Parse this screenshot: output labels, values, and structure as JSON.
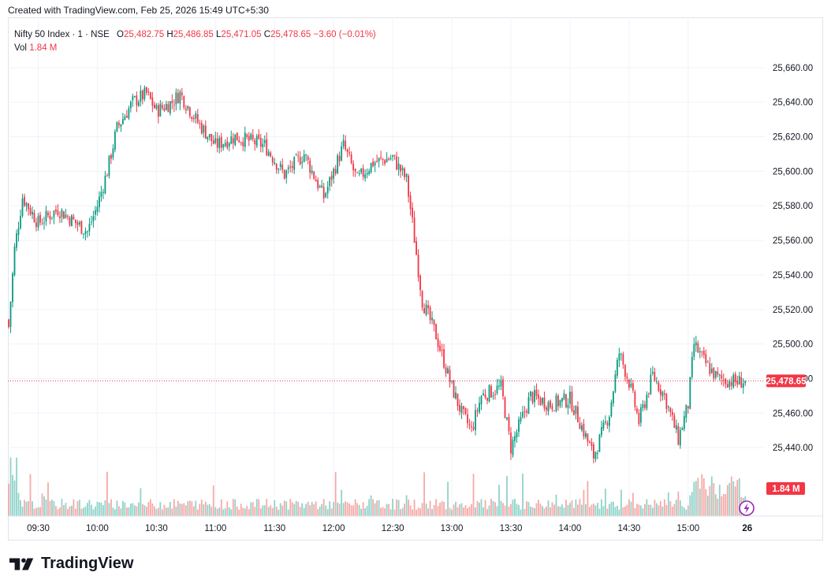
{
  "header": {
    "created_text": "Created with TradingView.com, Feb 25, 2026 15:49 UTC+5:30"
  },
  "legend": {
    "symbol": "Nifty 50 Index · 1 · NSE",
    "o_label": "O",
    "o_value": "25,482.75",
    "h_label": "H",
    "h_value": "25,486.85",
    "l_label": "L",
    "l_value": "25,471.05",
    "c_label": "C",
    "c_value": "25,478.65",
    "change": "−3.60 (−0.01%)",
    "vol_label": "Vol",
    "vol_value": "1.84 M"
  },
  "price_badge": "25,478.65",
  "volume_badge": "1.84 M",
  "footer": {
    "brand": "TradingView"
  },
  "colors": {
    "up": "#089981",
    "down": "#f23645",
    "up_vol": "#8fd3c9",
    "down_vol": "#f7a9a7",
    "grid": "#f0f3fa",
    "badge": "#f23645"
  },
  "icons": {
    "lightning": "lightning-icon",
    "logo": "tradingview-logo-icon"
  },
  "chart_data": {
    "type": "candlestick",
    "title": "Nifty 50 Index · 1 · NSE",
    "ylim": [
      25420,
      25680
    ],
    "y_ticks": [
      "25,440.00",
      "25,460.00",
      "25,480.00",
      "25,500.00",
      "25,520.00",
      "25,540.00",
      "25,560.00",
      "25,580.00",
      "25,600.00",
      "25,620.00",
      "25,640.00",
      "25,660.00"
    ],
    "x_ticks": [
      "09:30",
      "10:00",
      "10:30",
      "11:00",
      "11:30",
      "12:00",
      "12:30",
      "13:00",
      "13:30",
      "14:00",
      "14:30",
      "15:00",
      "26"
    ],
    "last_close": 25478.65,
    "close_path_anchors": [
      {
        "t": "09:15",
        "close": 25510
      },
      {
        "t": "09:18",
        "close": 25555
      },
      {
        "t": "09:22",
        "close": 25585
      },
      {
        "t": "09:30",
        "close": 25570
      },
      {
        "t": "09:40",
        "close": 25578
      },
      {
        "t": "09:55",
        "close": 25565
      },
      {
        "t": "10:00",
        "close": 25580
      },
      {
        "t": "10:05",
        "close": 25600
      },
      {
        "t": "10:10",
        "close": 25625
      },
      {
        "t": "10:18",
        "close": 25640
      },
      {
        "t": "10:25",
        "close": 25645
      },
      {
        "t": "10:30",
        "close": 25635
      },
      {
        "t": "10:38",
        "close": 25640
      },
      {
        "t": "10:42",
        "close": 25645
      },
      {
        "t": "10:50",
        "close": 25630
      },
      {
        "t": "11:00",
        "close": 25615
      },
      {
        "t": "11:10",
        "close": 25620
      },
      {
        "t": "11:25",
        "close": 25615
      },
      {
        "t": "11:35",
        "close": 25598
      },
      {
        "t": "11:45",
        "close": 25610
      },
      {
        "t": "11:55",
        "close": 25585
      },
      {
        "t": "12:05",
        "close": 25615
      },
      {
        "t": "12:12",
        "close": 25595
      },
      {
        "t": "12:20",
        "close": 25605
      },
      {
        "t": "12:30",
        "close": 25608
      },
      {
        "t": "12:37",
        "close": 25595
      },
      {
        "t": "12:40",
        "close": 25570
      },
      {
        "t": "12:45",
        "close": 25525
      },
      {
        "t": "12:52",
        "close": 25505
      },
      {
        "t": "13:00",
        "close": 25475
      },
      {
        "t": "13:05",
        "close": 25460
      },
      {
        "t": "13:10",
        "close": 25450
      },
      {
        "t": "13:15",
        "close": 25470
      },
      {
        "t": "13:25",
        "close": 25475
      },
      {
        "t": "13:30",
        "close": 25440
      },
      {
        "t": "13:40",
        "close": 25470
      },
      {
        "t": "13:50",
        "close": 25465
      },
      {
        "t": "14:00",
        "close": 25468
      },
      {
        "t": "14:05",
        "close": 25455
      },
      {
        "t": "14:12",
        "close": 25435
      },
      {
        "t": "14:20",
        "close": 25460
      },
      {
        "t": "14:25",
        "close": 25495
      },
      {
        "t": "14:30",
        "close": 25478
      },
      {
        "t": "14:35",
        "close": 25455
      },
      {
        "t": "14:42",
        "close": 25482
      },
      {
        "t": "14:48",
        "close": 25470
      },
      {
        "t": "14:55",
        "close": 25445
      },
      {
        "t": "15:00",
        "close": 25465
      },
      {
        "t": "15:03",
        "close": 25500
      },
      {
        "t": "15:08",
        "close": 25490
      },
      {
        "t": "15:15",
        "close": 25480
      },
      {
        "t": "15:25",
        "close": 25478
      },
      {
        "t": "15:29",
        "close": 25478.65
      }
    ]
  }
}
